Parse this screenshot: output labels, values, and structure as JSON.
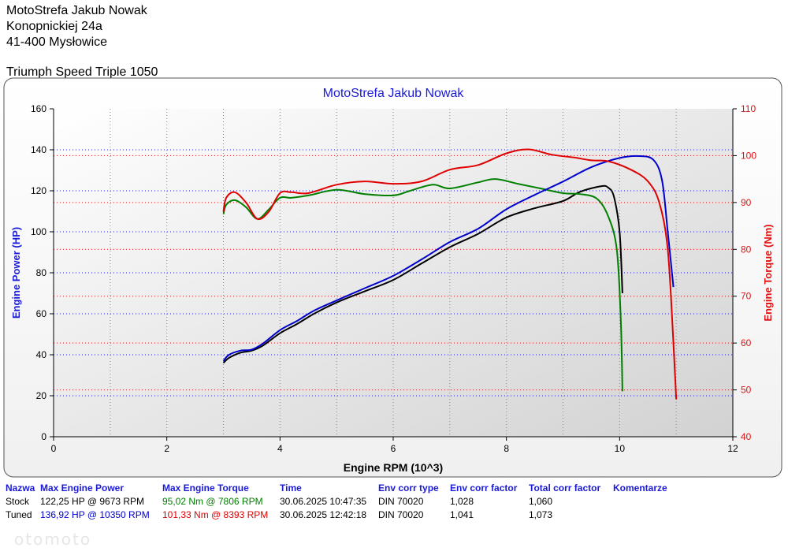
{
  "header": {
    "company": "MotoStrefa Jakub Nowak",
    "street": "Konopnickiej 24a",
    "city": "41-400 Mysłowice",
    "vehicle": "Triumph Speed Triple 1050"
  },
  "colors": {
    "stock_power": "#000000",
    "stock_torque": "#008000",
    "tuned_power": "#0000cc",
    "tuned_torque": "#e00000",
    "left_axis": "#1b1bd6",
    "right_axis": "#e01010"
  },
  "chart_data": {
    "type": "line",
    "title": "MotoStrefa Jakub Nowak",
    "xlabel": "Engine RPM (10^3)",
    "ylabel": "Engine Power (HP)",
    "y2label": "Engine Torque (Nm)",
    "xlim": [
      0,
      12
    ],
    "ylim": [
      0,
      160
    ],
    "y2lim": [
      40,
      110
    ],
    "xticks": [
      0,
      2,
      4,
      6,
      8,
      10,
      12
    ],
    "yticks": [
      0,
      20,
      40,
      60,
      80,
      100,
      120,
      140,
      160
    ],
    "y2ticks": [
      40,
      50,
      60,
      70,
      80,
      90,
      100,
      110
    ],
    "grid": true,
    "series": [
      {
        "name": "Stock",
        "quantity": "power",
        "axis": "left",
        "x": [
          3.0,
          3.1,
          3.3,
          3.5,
          3.7,
          4.0,
          4.3,
          4.6,
          5.0,
          5.5,
          6.0,
          6.5,
          7.0,
          7.5,
          8.0,
          8.5,
          9.0,
          9.3,
          9.673,
          9.8,
          9.9,
          10.0,
          10.05
        ],
        "y": [
          36,
          38.5,
          41,
          42,
          44.5,
          50.5,
          55,
          60,
          65.5,
          71,
          76.5,
          84.5,
          92.5,
          99,
          107,
          111.5,
          115,
          119.5,
          122.25,
          121.5,
          117,
          100,
          70
        ]
      },
      {
        "name": "Stock",
        "quantity": "torque",
        "axis": "right",
        "x": [
          3.0,
          3.05,
          3.2,
          3.4,
          3.6,
          3.8,
          4.0,
          4.2,
          4.5,
          5.0,
          5.5,
          6.0,
          6.3,
          6.7,
          7.0,
          7.5,
          7.806,
          8.2,
          8.6,
          9.0,
          9.3,
          9.6,
          9.8,
          9.95,
          10.02,
          10.05
        ],
        "y": [
          87.5,
          89.5,
          90.5,
          89,
          86.5,
          88.5,
          91.0,
          91.0,
          91.5,
          92.7,
          91.8,
          91.5,
          92.5,
          93.8,
          93.0,
          94.3,
          95.0,
          94.0,
          93.0,
          92.0,
          91.8,
          90.8,
          87.0,
          80.0,
          65.0,
          49.7
        ]
      },
      {
        "name": "Tuned",
        "quantity": "power",
        "axis": "left",
        "x": [
          3.0,
          3.1,
          3.3,
          3.5,
          3.7,
          4.0,
          4.3,
          4.6,
          5.0,
          5.5,
          6.0,
          6.5,
          7.0,
          7.5,
          8.0,
          8.5,
          9.0,
          9.5,
          10.0,
          10.35,
          10.6,
          10.75,
          10.85,
          10.95
        ],
        "y": [
          37,
          40,
          42,
          42.5,
          45.5,
          52,
          56.5,
          61.5,
          66.5,
          72.5,
          78.5,
          86.5,
          95,
          101.5,
          111,
          118,
          124.5,
          131.5,
          136,
          136.92,
          135,
          125,
          100,
          73
        ]
      },
      {
        "name": "Tuned",
        "quantity": "torque",
        "axis": "right",
        "x": [
          3.0,
          3.05,
          3.2,
          3.4,
          3.6,
          3.8,
          4.0,
          4.2,
          4.5,
          5.0,
          5.5,
          6.0,
          6.5,
          7.0,
          7.5,
          8.0,
          8.393,
          8.8,
          9.2,
          9.5,
          9.8,
          10.2,
          10.5,
          10.7,
          10.85,
          10.95,
          11.0
        ],
        "y": [
          88.0,
          91.0,
          92.2,
          90.0,
          86.5,
          88.0,
          92.0,
          92.2,
          92.0,
          93.8,
          94.5,
          94.0,
          94.5,
          97.0,
          98.0,
          100.5,
          101.33,
          100.2,
          99.6,
          99.0,
          98.8,
          97.0,
          94.5,
          90.0,
          80.0,
          60.0,
          48.0
        ]
      }
    ]
  },
  "table": {
    "headers": [
      "Nazwa",
      "Max Engine Power",
      "Max Engine Torque",
      "Time",
      "Env corr type",
      "Env corr factor",
      "Total corr factor",
      "Komentarze"
    ],
    "rows": [
      {
        "name": "Stock",
        "power": "122,25 HP @ 9673 RPM",
        "torque": "95,02 Nm @ 7806 RPM",
        "time": "30.06.2025 10:47:35",
        "corr_type": "DIN 70020",
        "corr_factor": "1,028",
        "total_factor": "1,060",
        "comment": ""
      },
      {
        "name": "Tuned",
        "power": "136,92 HP @ 10350 RPM",
        "torque": "101,33 Nm @ 8393 RPM",
        "time": "30.06.2025 12:42:18",
        "corr_type": "DIN 70020",
        "corr_factor": "1,041",
        "total_factor": "1,073",
        "comment": ""
      }
    ]
  },
  "watermark": "otomoto"
}
